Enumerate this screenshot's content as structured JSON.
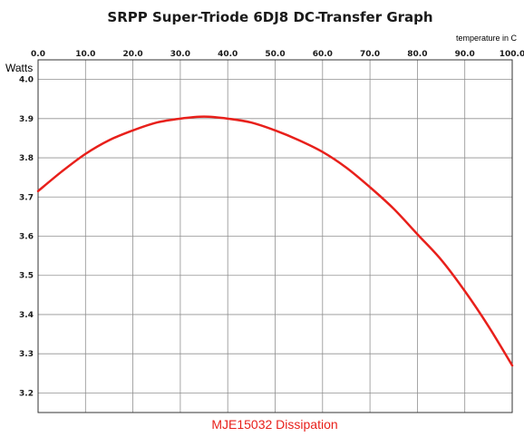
{
  "chart_data": {
    "type": "line",
    "title": "SRPP  Super-Triode 6DJ8 DC-Transfer Graph",
    "xlabel": "temperature in C",
    "ylabel": "Watts",
    "caption": "MJE15032 Dissipation",
    "xlim": [
      0,
      100
    ],
    "ylim": [
      3.15,
      4.05
    ],
    "x_ticks": [
      "0.0",
      "10.0",
      "20.0",
      "30.0",
      "40.0",
      "50.0",
      "60.0",
      "70.0",
      "80.0",
      "90.0",
      "100.0"
    ],
    "y_ticks": [
      "4.0",
      "3.9",
      "3.8",
      "3.7",
      "3.6",
      "3.5",
      "3.4",
      "3.3",
      "3.2"
    ],
    "y_tick_values": [
      4.0,
      3.9,
      3.8,
      3.7,
      3.6,
      3.5,
      3.4,
      3.3,
      3.2
    ],
    "x_axis_position": "top",
    "grid": true,
    "series": [
      {
        "x": [
          0,
          5,
          10,
          15,
          20,
          25,
          30,
          35,
          40,
          45,
          50,
          55,
          60,
          65,
          70,
          75,
          80,
          85,
          90,
          95,
          100
        ],
        "y": [
          3.715,
          3.765,
          3.81,
          3.845,
          3.87,
          3.89,
          3.9,
          3.905,
          3.9,
          3.89,
          3.87,
          3.845,
          3.815,
          3.775,
          3.725,
          3.67,
          3.605,
          3.54,
          3.46,
          3.37,
          3.27
        ],
        "color": "#e8201b"
      }
    ]
  },
  "colors": {
    "curve": "#e8201b",
    "caption": "#e8201b",
    "grid": "#909090",
    "axis": "#333333"
  }
}
